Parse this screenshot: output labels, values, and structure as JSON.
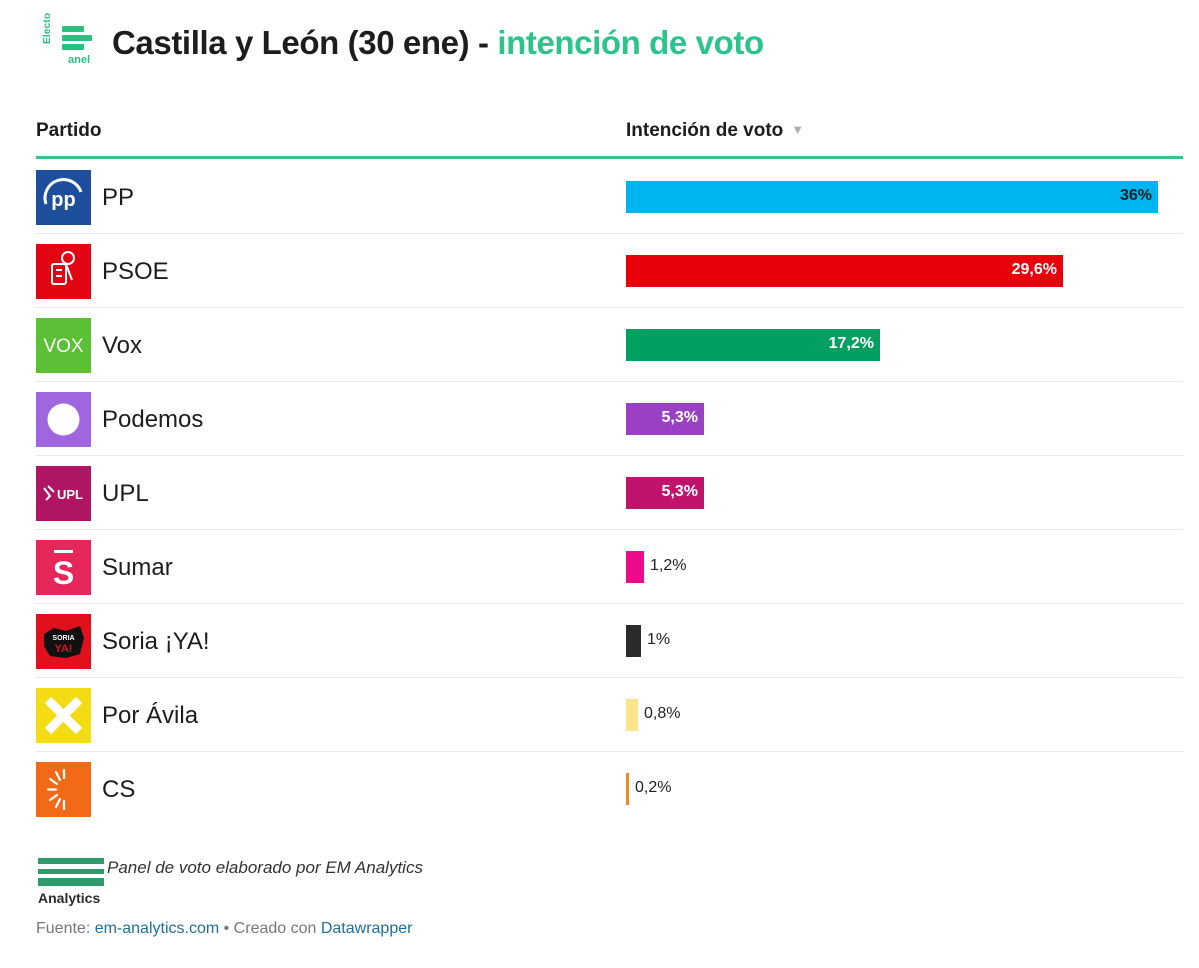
{
  "header": {
    "logo_top": "Electo",
    "logo_bottom": "anel",
    "title_main": "Castilla y León (30 ene) - ",
    "title_accent": "intención de voto"
  },
  "columns": {
    "party": "Partido",
    "vote": "Intención de voto",
    "sort_icon": "▼"
  },
  "colors": {
    "accent": "#2bc48a",
    "rule": "#3cc08c"
  },
  "chart_data": {
    "type": "bar",
    "orientation": "horizontal",
    "title": "Castilla y León (30 ene) - intención de voto",
    "xlim": [
      0,
      36
    ],
    "categories": [
      "PP",
      "PSOE",
      "Vox",
      "Podemos",
      "UPL",
      "Sumar",
      "Soria ¡YA!",
      "Por Ávila",
      "CS"
    ],
    "values": [
      36,
      29.6,
      17.2,
      5.3,
      5.3,
      1.2,
      1,
      0.8,
      0.2
    ],
    "labels": [
      "36%",
      "29,6%",
      "17,2%",
      "5,3%",
      "5,3%",
      "1,2%",
      "1%",
      "0,8%",
      "0,2%"
    ],
    "colors": [
      "#00b4f0",
      "#e8000b",
      "#00a060",
      "#9b3fc4",
      "#c0136c",
      "#ec0b88",
      "#2b2b2b",
      "#fbe58c",
      "#ef8a1c"
    ]
  },
  "parties": [
    {
      "name": "PP",
      "logo_icon": "pp-logo-icon",
      "logo_text": "PP",
      "logo_bg": "#1d4f9c"
    },
    {
      "name": "PSOE",
      "logo_icon": "psoe-logo-icon",
      "logo_text": "",
      "logo_bg": "#e20613"
    },
    {
      "name": "Vox",
      "logo_icon": "vox-logo-icon",
      "logo_text": "VOX",
      "logo_bg": "#5bc035"
    },
    {
      "name": "Podemos",
      "logo_icon": "podemos-logo-icon",
      "logo_text": "",
      "logo_bg": "#a066e0"
    },
    {
      "name": "UPL",
      "logo_icon": "upl-logo-icon",
      "logo_text": "UPL",
      "logo_bg": "#b01563"
    },
    {
      "name": "Sumar",
      "logo_icon": "sumar-logo-icon",
      "logo_text": "S",
      "logo_bg": "#e5275a"
    },
    {
      "name": "Soria ¡YA!",
      "logo_icon": "soria-ya-logo-icon",
      "logo_text": "SORIA YA!",
      "logo_bg": "#e0101c"
    },
    {
      "name": "Por Ávila",
      "logo_icon": "por-avila-logo-icon",
      "logo_text": "",
      "logo_bg": "#f3dc14"
    },
    {
      "name": "CS",
      "logo_icon": "cs-logo-icon",
      "logo_text": "",
      "logo_bg": "#f26a18"
    }
  ],
  "footer": {
    "logo_text": "Analytics",
    "note": "Panel de voto elaborado por EM Analytics",
    "source_prefix": "Fuente: ",
    "source_link": "em-analytics.com",
    "separator": " • Creado con ",
    "tool_link": "Datawrapper"
  }
}
